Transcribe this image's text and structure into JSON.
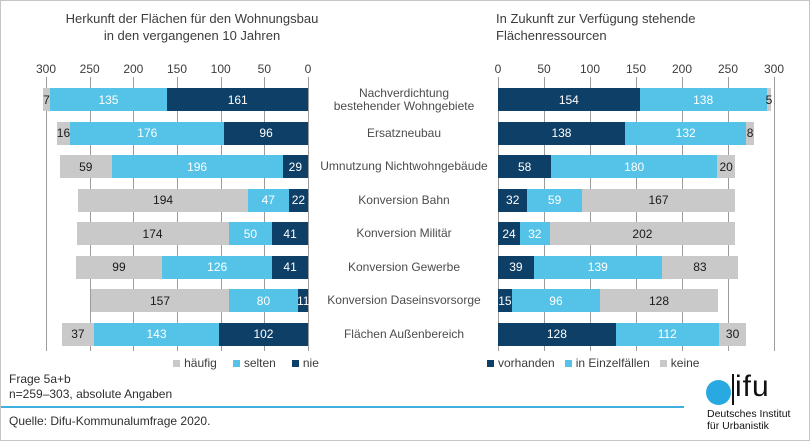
{
  "chart_data": {
    "type": "bar",
    "layout": "paired-horizontal-stacked, left axis reversed (pyramid style)",
    "categories": [
      "Nachverdichtung\nbestehender Wohngebiete",
      "Ersatzneubau",
      "Umnutzung Nichtwohngebäude",
      "Konversion Bahn",
      "Konversion Militär",
      "Konversion Gewerbe",
      "Konversion Daseinsvorsorge",
      "Flächen Außenbereich"
    ],
    "left": {
      "title": "Herkunft der Flächen für den Wohnungsbau\nin den vergangenen 10 Jahren",
      "xlim": [
        0,
        300
      ],
      "axis_ticks": [
        300,
        250,
        200,
        150,
        100,
        50,
        0
      ],
      "axis_reversed": true,
      "grid": true,
      "series": [
        {
          "name": "häufig",
          "color": "#c9c9c9",
          "label_color": "#1a1a1a",
          "values": [
            7,
            16,
            59,
            194,
            174,
            99,
            157,
            37
          ]
        },
        {
          "name": "selten",
          "color": "#55c3e8",
          "label_color": "#ffffff",
          "values": [
            135,
            176,
            196,
            47,
            50,
            126,
            80,
            143
          ]
        },
        {
          "name": "nie",
          "color": "#0e3f67",
          "label_color": "#ffffff",
          "values": [
            161,
            96,
            29,
            22,
            41,
            41,
            11,
            102
          ]
        }
      ]
    },
    "right": {
      "title": "In Zukunft zur Verfügung stehende\nFlächenressourcen",
      "xlim": [
        0,
        300
      ],
      "axis_ticks": [
        0,
        50,
        100,
        150,
        200,
        250,
        300
      ],
      "axis_reversed": false,
      "grid": true,
      "series": [
        {
          "name": "vorhanden",
          "color": "#0e3f67",
          "label_color": "#ffffff",
          "values": [
            154,
            138,
            58,
            32,
            24,
            39,
            15,
            128
          ]
        },
        {
          "name": "in Einzelfällen",
          "color": "#55c3e8",
          "label_color": "#ffffff",
          "values": [
            138,
            132,
            180,
            59,
            32,
            139,
            96,
            112
          ]
        },
        {
          "name": "keine",
          "color": "#c9c9c9",
          "label_color": "#1a1a1a",
          "values": [
            5,
            8,
            20,
            167,
            202,
            83,
            128,
            30
          ]
        }
      ]
    }
  },
  "footer": {
    "frage": "Frage 5a+b",
    "n": "n=259–303, absolute Angaben",
    "quelle": "Quelle: Difu-Kommunalumfrage 2020.",
    "rule_color": "#3fafe0"
  },
  "logo": {
    "wordmark_suffix": "ifu",
    "subtitle": "Deutsches Institut\nfür Urbanistik",
    "dot_color": "#29a9e1"
  },
  "style": {
    "gridline_color": "#9b9b9b"
  }
}
